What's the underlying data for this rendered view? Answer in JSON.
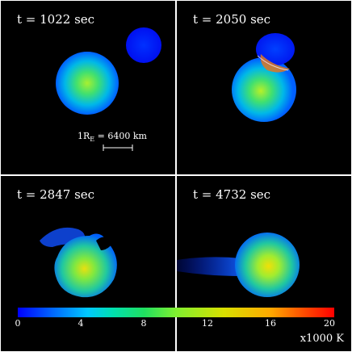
{
  "panels": [
    {
      "time": "t = 1022 sec"
    },
    {
      "time": "t = 2050 sec"
    },
    {
      "time": "t = 2847 sec"
    },
    {
      "time": "t = 4732 sec"
    }
  ],
  "scale_bar": {
    "label_prefix": "1R",
    "label_sub": "E",
    "label_suffix": " = 6400 km"
  },
  "colorbar": {
    "ticks": [
      "0",
      "4",
      "8",
      "12",
      "16",
      "20"
    ],
    "unit": "x1000 K",
    "colors": [
      "#0000ff",
      "#00c8ff",
      "#20e060",
      "#d8e000",
      "#ff5000",
      "#ff0000"
    ]
  }
}
